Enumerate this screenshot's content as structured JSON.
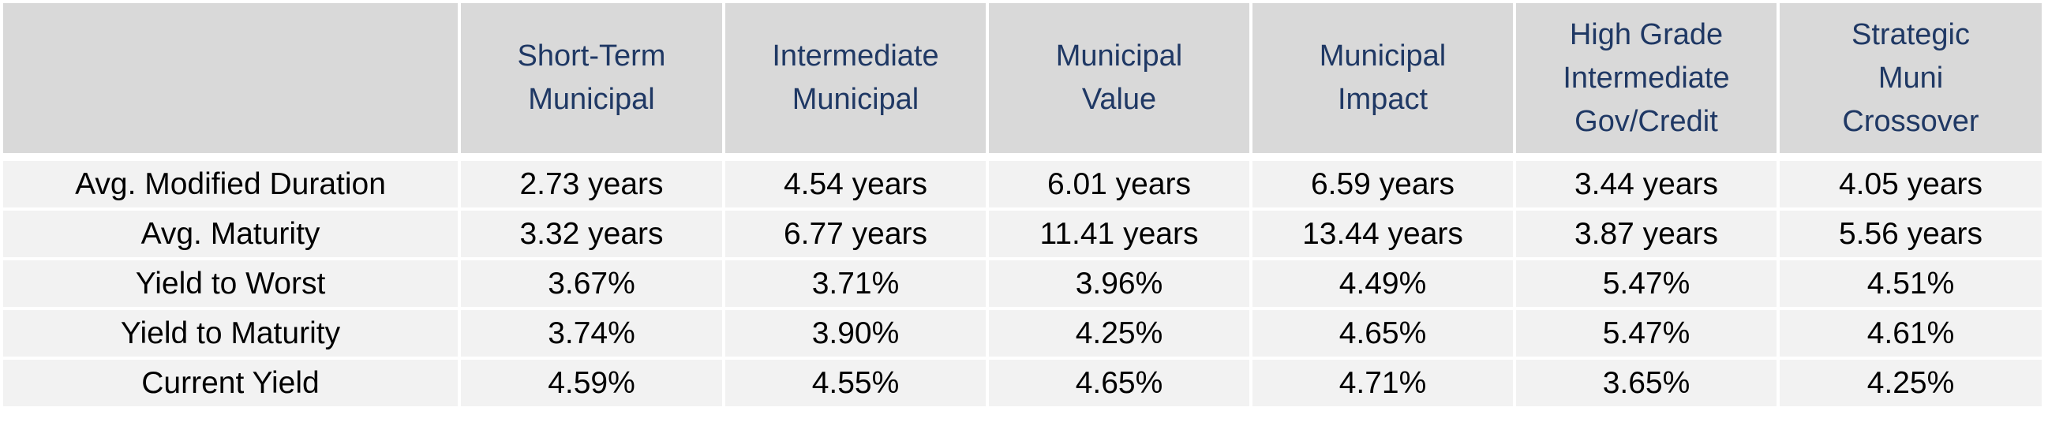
{
  "chart_data": {
    "type": "table",
    "columns": [
      "",
      "Short-Term Municipal",
      "Intermediate Municipal",
      "Municipal Value",
      "Municipal Impact",
      "High Grade Intermediate Gov/Credit",
      "Strategic Muni Crossover"
    ],
    "header_lines": [
      [],
      [
        "Short-Term",
        "Municipal"
      ],
      [
        "Intermediate",
        "Municipal"
      ],
      [
        "Municipal",
        "Value"
      ],
      [
        "Municipal",
        "Impact"
      ],
      [
        "High Grade",
        "Intermediate",
        "Gov/Credit"
      ],
      [
        "Strategic",
        "Muni",
        "Crossover"
      ]
    ],
    "rows": [
      {
        "label": "Avg. Modified Duration",
        "values": [
          "2.73 years",
          "4.54 years",
          "6.01 years",
          "6.59 years",
          "3.44 years",
          "4.05 years"
        ]
      },
      {
        "label": "Avg. Maturity",
        "values": [
          "3.32 years",
          "6.77 years",
          "11.41 years",
          "13.44 years",
          "3.87 years",
          "5.56 years"
        ]
      },
      {
        "label": "Yield to Worst",
        "values": [
          "3.67%",
          "3.71%",
          "3.96%",
          "4.49%",
          "5.47%",
          "4.51%"
        ]
      },
      {
        "label": "Yield to Maturity",
        "values": [
          "3.74%",
          "3.90%",
          "4.25%",
          "4.65%",
          "5.47%",
          "4.61%"
        ]
      },
      {
        "label": "Current Yield",
        "values": [
          "4.59%",
          "4.55%",
          "4.65%",
          "4.71%",
          "3.65%",
          "4.25%"
        ]
      }
    ],
    "colors": {
      "header_background": "#d9d9d9",
      "header_text": "#1f3864",
      "row_background": "#f2f2f2",
      "body_text": "#000000"
    }
  }
}
